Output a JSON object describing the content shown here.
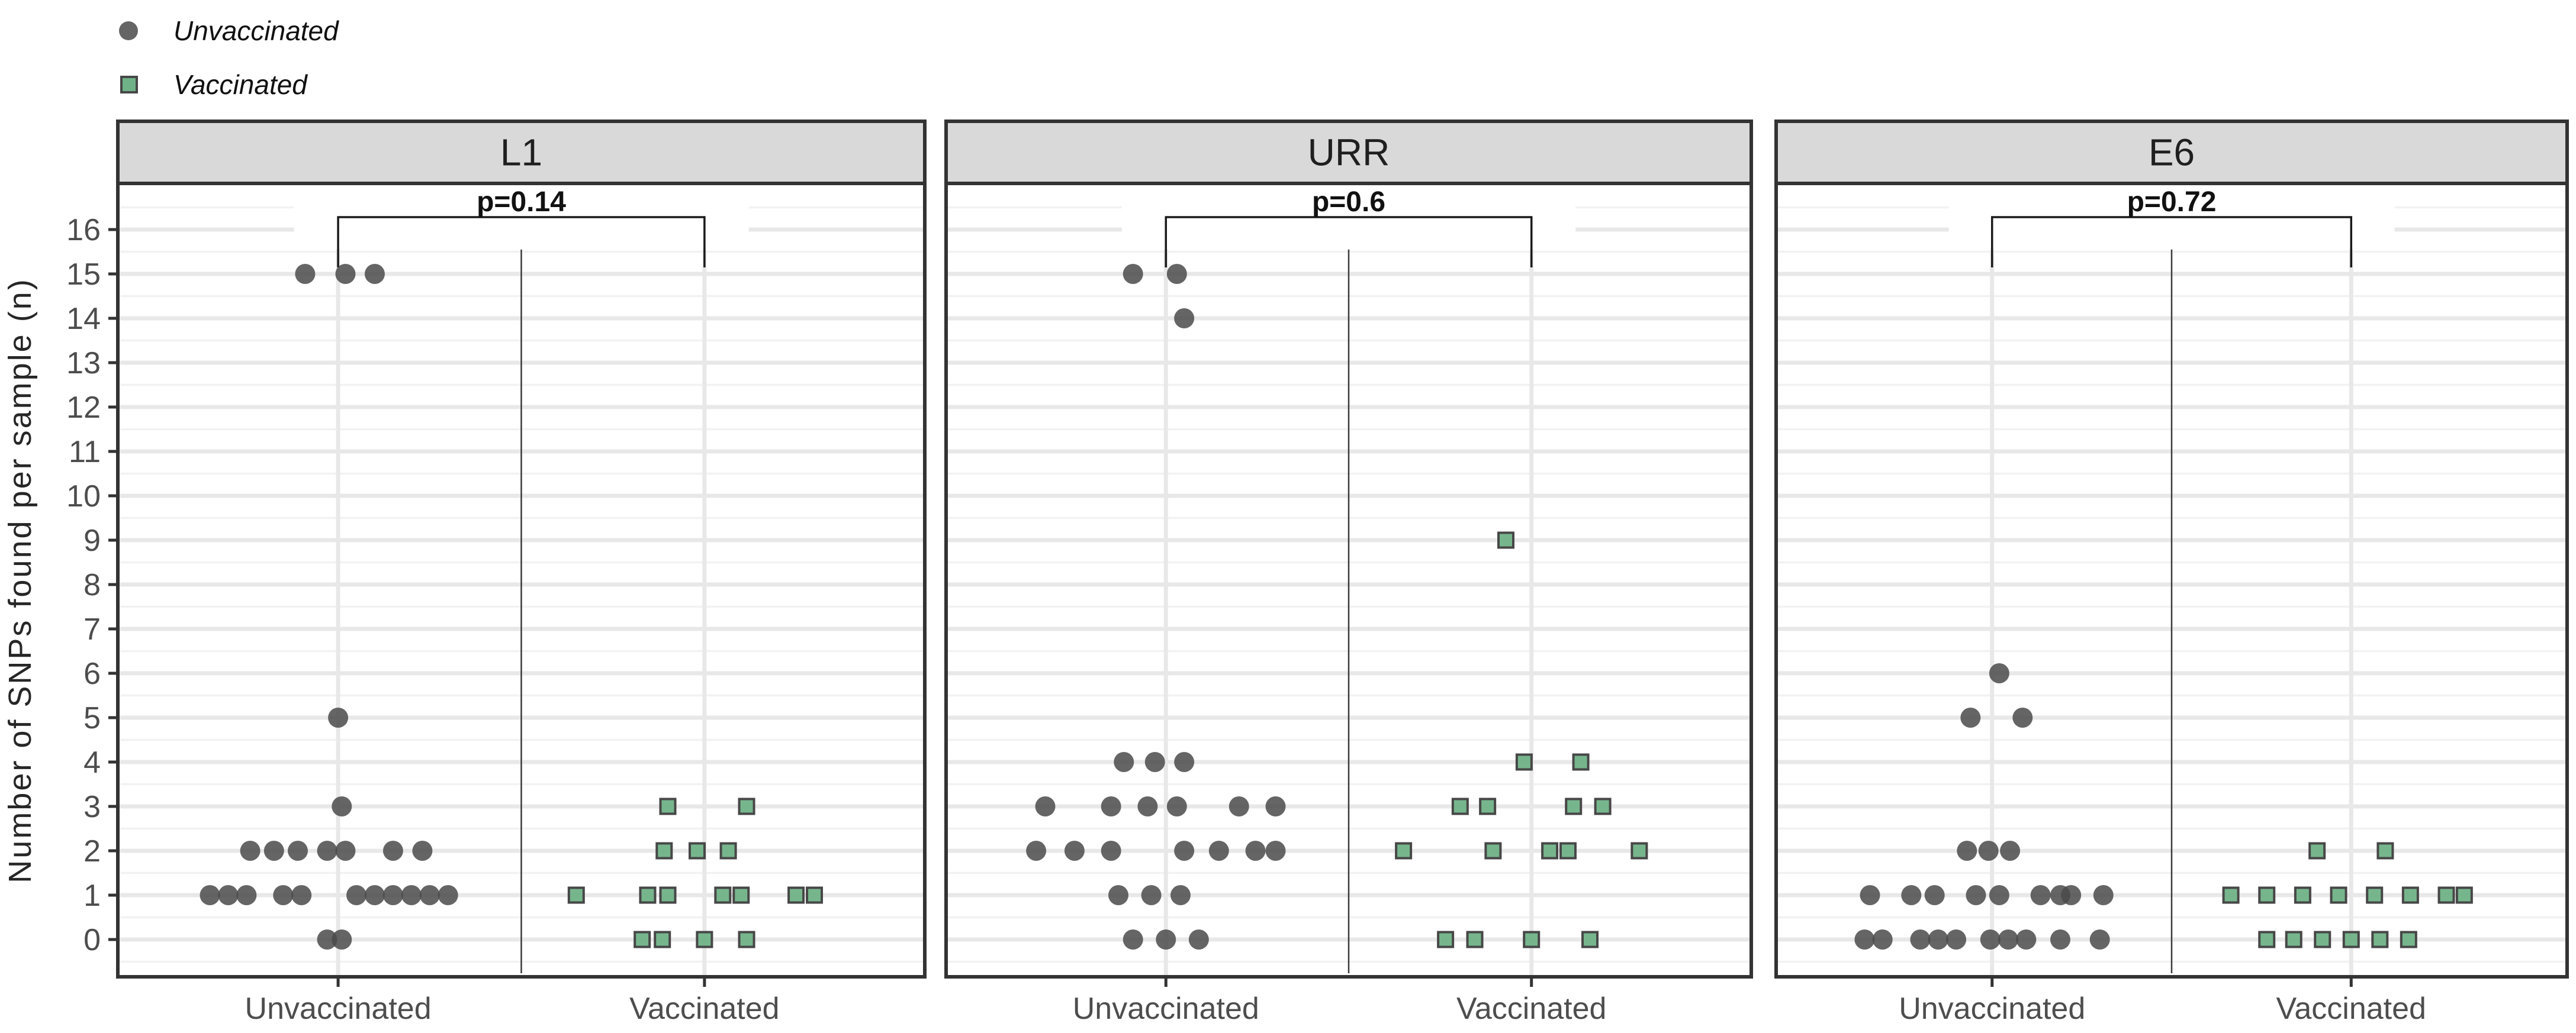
{
  "legend": {
    "items": [
      {
        "label": "Unvaccinated",
        "marker": "circle-icon",
        "color": "#595959"
      },
      {
        "label": "Vaccinated",
        "marker": "square-icon",
        "color": "#70b287"
      }
    ]
  },
  "y_axis": {
    "title": "Number of SNPs found per sample (n)",
    "tick_labels": [
      "0",
      "1",
      "2",
      "3",
      "4",
      "5",
      "6",
      "7",
      "8",
      "9",
      "10",
      "11",
      "12",
      "13",
      "14",
      "15",
      "16"
    ]
  },
  "x_axis": {
    "categories": [
      "Unvaccinated",
      "Vaccinated"
    ]
  },
  "colors": {
    "point_gray": "#4a4a4a",
    "point_green": "#70b287",
    "green_border": "#474747",
    "strip_bg": "#d9d9d9",
    "panel_border": "#333333",
    "grid_major": "#e8e8e8",
    "grid_minor": "#f2f2f2",
    "axis_text": "#4d4d4d",
    "title_text": "#262626",
    "p_text": "#111111"
  },
  "chart_data": {
    "type": "scatter",
    "subtype": "jittered-dot-plot-faceted",
    "ylabel": "Number of SNPs found per sample (n)",
    "xlabel": "",
    "ylim": [
      -0.84,
      17.04
    ],
    "y_ticks": [
      0,
      1,
      2,
      3,
      4,
      5,
      6,
      7,
      8,
      9,
      10,
      11,
      12,
      13,
      14,
      15,
      16
    ],
    "grid": "major-and-minor",
    "legend_position": "top-left",
    "categories": [
      "Unvaccinated",
      "Vaccinated"
    ],
    "facets": [
      {
        "title": "L1",
        "p_value": "p=0.14",
        "series": [
          {
            "name": "Unvaccinated",
            "marker": "circle",
            "points": [
              [
                15,
                -0.09
              ],
              [
                15,
                0.02
              ],
              [
                15,
                0.1
              ],
              [
                5,
                0.0
              ],
              [
                3,
                0.01
              ],
              [
                2,
                -0.24
              ],
              [
                2,
                -0.175
              ],
              [
                2,
                -0.11
              ],
              [
                2,
                -0.03
              ],
              [
                2,
                0.02
              ],
              [
                2,
                0.15
              ],
              [
                2,
                0.23
              ],
              [
                1,
                -0.35
              ],
              [
                1,
                -0.3
              ],
              [
                1,
                -0.25
              ],
              [
                1,
                -0.15
              ],
              [
                1,
                -0.1
              ],
              [
                1,
                0.05
              ],
              [
                1,
                0.1
              ],
              [
                1,
                0.15
              ],
              [
                1,
                0.2
              ],
              [
                1,
                0.25
              ],
              [
                1,
                0.3
              ],
              [
                0,
                -0.03
              ],
              [
                0,
                0.01
              ]
            ]
          },
          {
            "name": "Vaccinated",
            "marker": "square",
            "points": [
              [
                3,
                -0.1
              ],
              [
                3,
                0.115
              ],
              [
                2,
                -0.11
              ],
              [
                2,
                -0.02
              ],
              [
                2,
                0.065
              ],
              [
                1,
                -0.35
              ],
              [
                1,
                -0.155
              ],
              [
                1,
                -0.1
              ],
              [
                1,
                0.05
              ],
              [
                1,
                0.1
              ],
              [
                1,
                0.25
              ],
              [
                1,
                0.3
              ],
              [
                0,
                -0.17
              ],
              [
                0,
                -0.115
              ],
              [
                0,
                0.0
              ],
              [
                0,
                0.115
              ]
            ]
          }
        ]
      },
      {
        "title": "URR",
        "p_value": "p=0.6",
        "series": [
          {
            "name": "Unvaccinated",
            "marker": "circle",
            "points": [
              [
                15,
                -0.09
              ],
              [
                15,
                0.03
              ],
              [
                14,
                0.05
              ],
              [
                4,
                -0.115
              ],
              [
                4,
                -0.03
              ],
              [
                4,
                0.05
              ],
              [
                3,
                -0.33
              ],
              [
                3,
                -0.15
              ],
              [
                3,
                -0.05
              ],
              [
                3,
                0.03
              ],
              [
                3,
                0.2
              ],
              [
                3,
                0.3
              ],
              [
                2,
                -0.355
              ],
              [
                2,
                -0.25
              ],
              [
                2,
                -0.15
              ],
              [
                2,
                0.05
              ],
              [
                2,
                0.145
              ],
              [
                2,
                0.245
              ],
              [
                2,
                0.3
              ],
              [
                1,
                -0.13
              ],
              [
                1,
                -0.04
              ],
              [
                1,
                0.04
              ],
              [
                0,
                -0.09
              ],
              [
                0,
                0.0
              ],
              [
                0,
                0.09
              ]
            ]
          },
          {
            "name": "Vaccinated",
            "marker": "square",
            "points": [
              [
                9,
                -0.07
              ],
              [
                4,
                -0.02
              ],
              [
                4,
                0.135
              ],
              [
                3,
                -0.195
              ],
              [
                3,
                -0.12
              ],
              [
                3,
                0.115
              ],
              [
                3,
                0.195
              ],
              [
                2,
                -0.35
              ],
              [
                2,
                -0.105
              ],
              [
                2,
                0.05
              ],
              [
                2,
                0.1
              ],
              [
                2,
                0.295
              ],
              [
                0,
                -0.235
              ],
              [
                0,
                -0.155
              ],
              [
                0,
                0.0
              ],
              [
                0,
                0.16
              ]
            ]
          }
        ]
      },
      {
        "title": "E6",
        "p_value": "p=0.72",
        "series": [
          {
            "name": "Unvaccinated",
            "marker": "circle",
            "points": [
              [
                6,
                0.02
              ],
              [
                5,
                -0.06
              ],
              [
                5,
                0.085
              ],
              [
                2,
                -0.07
              ],
              [
                2,
                -0.01
              ],
              [
                2,
                0.05
              ],
              [
                1,
                -0.34
              ],
              [
                1,
                -0.225
              ],
              [
                1,
                -0.16
              ],
              [
                1,
                -0.045
              ],
              [
                1,
                0.02
              ],
              [
                1,
                0.135
              ],
              [
                1,
                0.19
              ],
              [
                1,
                0.22
              ],
              [
                1,
                0.31
              ],
              [
                0,
                -0.355
              ],
              [
                0,
                -0.305
              ],
              [
                0,
                -0.2
              ],
              [
                0,
                -0.15
              ],
              [
                0,
                -0.1
              ],
              [
                0,
                -0.005
              ],
              [
                0,
                0.045
              ],
              [
                0,
                0.095
              ],
              [
                0,
                0.19
              ],
              [
                0,
                0.3
              ]
            ]
          },
          {
            "name": "Vaccinated",
            "marker": "square",
            "points": [
              [
                2,
                -0.095
              ],
              [
                2,
                0.095
              ],
              [
                1,
                -0.335
              ],
              [
                1,
                -0.235
              ],
              [
                1,
                -0.135
              ],
              [
                1,
                -0.035
              ],
              [
                1,
                0.065
              ],
              [
                1,
                0.165
              ],
              [
                1,
                0.265
              ],
              [
                1,
                0.315
              ],
              [
                0,
                -0.235
              ],
              [
                0,
                -0.16
              ],
              [
                0,
                -0.08
              ],
              [
                0,
                0.0
              ],
              [
                0,
                0.08
              ],
              [
                0,
                0.16
              ]
            ]
          }
        ]
      }
    ]
  }
}
